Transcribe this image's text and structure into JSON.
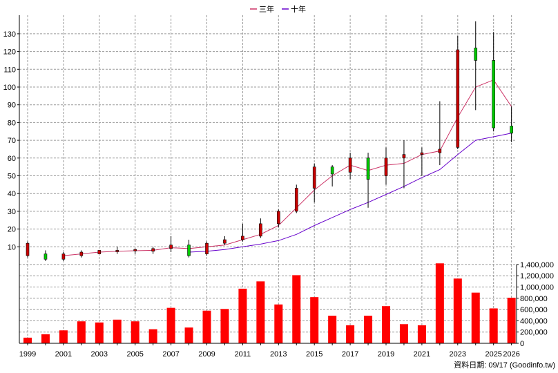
{
  "chart_data": {
    "type": "candlestick",
    "legend": {
      "position": "top-center",
      "items": [
        {
          "label": "三年",
          "color": "#cc3366"
        },
        {
          "label": "十年",
          "color": "#6600cc"
        }
      ]
    },
    "years": [
      1999,
      2000,
      2001,
      2002,
      2003,
      2004,
      2005,
      2006,
      2007,
      2008,
      2009,
      2010,
      2011,
      2012,
      2013,
      2014,
      2015,
      2016,
      2017,
      2018,
      2019,
      2020,
      2021,
      2022,
      2023,
      2024,
      2025,
      2026
    ],
    "x_tick_labels": [
      "1999",
      "2001",
      "2003",
      "2005",
      "2007",
      "2009",
      "2011",
      "2013",
      "2015",
      "2017",
      "2019",
      "2021",
      "2023",
      "2025",
      "2026"
    ],
    "price_axis": {
      "ylim": [
        0,
        135
      ],
      "ticks": [
        10,
        20,
        30,
        40,
        50,
        60,
        70,
        80,
        90,
        100,
        110,
        120,
        130
      ]
    },
    "volume_axis": {
      "ylim": [
        0,
        1450000
      ],
      "ticks": [
        "0",
        "200,000",
        "400,000",
        "600,000",
        "800,000",
        "1,000,000",
        "1,200,000",
        "1,400,000"
      ],
      "tick_values": [
        0,
        200000,
        400000,
        600000,
        800000,
        1000000,
        1200000,
        1400000
      ]
    },
    "candles": [
      {
        "year": 1999,
        "open": 5,
        "close": 12,
        "high": 13,
        "low": 4
      },
      {
        "year": 2000,
        "open": 6,
        "close": 3,
        "high": 8,
        "low": 2
      },
      {
        "year": 2001,
        "open": 3,
        "close": 6,
        "high": 7,
        "low": 2
      },
      {
        "year": 2002,
        "open": 5,
        "close": 7,
        "high": 8,
        "low": 4
      },
      {
        "year": 2003,
        "open": 6,
        "close": 8,
        "high": 8,
        "low": 6
      },
      {
        "year": 2004,
        "open": 7.5,
        "close": 8,
        "high": 10,
        "low": 6
      },
      {
        "year": 2005,
        "open": 8,
        "close": 8.5,
        "high": 9,
        "low": 6
      },
      {
        "year": 2006,
        "open": 7.5,
        "close": 9,
        "high": 10,
        "low": 6
      },
      {
        "year": 2007,
        "open": 9,
        "close": 11,
        "high": 16,
        "low": 7
      },
      {
        "year": 2008,
        "open": 11,
        "close": 5,
        "high": 14,
        "low": 4
      },
      {
        "year": 2009,
        "open": 6,
        "close": 12,
        "high": 13,
        "low": 5
      },
      {
        "year": 2010,
        "open": 12,
        "close": 14,
        "high": 16,
        "low": 11
      },
      {
        "year": 2011,
        "open": 14,
        "close": 16,
        "high": 23,
        "low": 13
      },
      {
        "year": 2012,
        "open": 16,
        "close": 23,
        "high": 26,
        "low": 15
      },
      {
        "year": 2013,
        "open": 23,
        "close": 30,
        "high": 31,
        "low": 21
      },
      {
        "year": 2014,
        "open": 30,
        "close": 43,
        "high": 45,
        "low": 29
      },
      {
        "year": 2015,
        "open": 43,
        "close": 55,
        "high": 57,
        "low": 35
      },
      {
        "year": 2016,
        "open": 55,
        "close": 51,
        "high": 56,
        "low": 44
      },
      {
        "year": 2017,
        "open": 52,
        "close": 60,
        "high": 63,
        "low": 48
      },
      {
        "year": 2018,
        "open": 60,
        "close": 48,
        "high": 63,
        "low": 32
      },
      {
        "year": 2019,
        "open": 50,
        "close": 60,
        "high": 66,
        "low": 45
      },
      {
        "year": 2020,
        "open": 60,
        "close": 62,
        "high": 70,
        "low": 43
      },
      {
        "year": 2021,
        "open": 62,
        "close": 63,
        "high": 66,
        "low": 50
      },
      {
        "year": 2022,
        "open": 63,
        "close": 65,
        "high": 92,
        "low": 56
      },
      {
        "year": 2023,
        "open": 66,
        "close": 121,
        "high": 129,
        "low": 65
      },
      {
        "year": 2024,
        "open": 122,
        "close": 115,
        "high": 137,
        "low": 87
      },
      {
        "year": 2025,
        "open": 115,
        "close": 77,
        "high": 131,
        "low": 75
      },
      {
        "year": 2026,
        "open": 78,
        "close": 74,
        "high": 89,
        "low": 69
      }
    ],
    "series": [
      {
        "name": "三年",
        "color": "#cc3366",
        "x": [
          2001,
          2002,
          2003,
          2004,
          2005,
          2006,
          2007,
          2008,
          2009,
          2010,
          2011,
          2012,
          2013,
          2014,
          2015,
          2016,
          2017,
          2018,
          2019,
          2020,
          2021,
          2022,
          2023,
          2024,
          2025,
          2026
        ],
        "values": [
          5,
          6,
          7,
          7.5,
          7.8,
          8,
          9.5,
          9,
          10,
          11,
          14,
          17,
          22,
          32,
          42,
          50,
          56,
          53,
          56,
          57,
          62,
          64,
          83,
          100,
          104,
          89
        ]
      },
      {
        "name": "十年",
        "color": "#6600cc",
        "x": [
          2008,
          2009,
          2010,
          2011,
          2012,
          2013,
          2014,
          2015,
          2016,
          2017,
          2018,
          2019,
          2020,
          2021,
          2022,
          2023,
          2024,
          2025,
          2026
        ],
        "values": [
          7,
          7.5,
          8.5,
          10,
          11.5,
          13.5,
          17,
          22,
          26.5,
          31,
          35,
          39.5,
          44,
          49,
          53.5,
          62,
          70,
          72,
          74
        ]
      }
    ],
    "volumes": [
      100000,
      160000,
      230000,
      390000,
      370000,
      420000,
      390000,
      250000,
      630000,
      280000,
      580000,
      610000,
      970000,
      1100000,
      690000,
      1210000,
      820000,
      490000,
      320000,
      490000,
      660000,
      340000,
      320000,
      1420000,
      1150000,
      900000,
      620000,
      810000
    ]
  },
  "colors": {
    "bar": "#ff0000",
    "candle_up": "#cc0000",
    "candle_down": "#00cc00",
    "grid": "#999999"
  },
  "footer": "資料日期: 09/17  (Goodinfo.tw)"
}
